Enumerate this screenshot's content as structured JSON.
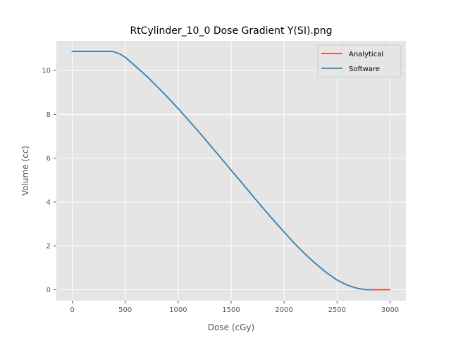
{
  "chart_data": {
    "type": "line",
    "title": "RtCylinder_10_0 Dose Gradient Y(SI).png",
    "xlabel": "Dose (cGy)",
    "ylabel": "Volume (cc)",
    "xlim": [
      -150,
      3150
    ],
    "ylim": [
      -0.5,
      11.35
    ],
    "xticks": [
      0,
      500,
      1000,
      1500,
      2000,
      2500,
      3000
    ],
    "yticks": [
      0,
      2,
      4,
      6,
      8,
      10
    ],
    "grid": true,
    "legend": "top-right",
    "series": [
      {
        "name": "Analytical",
        "color": "#e24a33",
        "x": [
          0,
          200,
          380,
          450,
          500,
          600,
          700,
          800,
          900,
          1000,
          1100,
          1200,
          1300,
          1400,
          1500,
          1600,
          1700,
          1800,
          1900,
          2000,
          2100,
          2200,
          2300,
          2400,
          2500,
          2600,
          2700,
          2780,
          2830,
          2900,
          3000
        ],
        "y": [
          10.87,
          10.87,
          10.87,
          10.75,
          10.6,
          10.18,
          9.75,
          9.27,
          8.78,
          8.26,
          7.72,
          7.17,
          6.6,
          6.03,
          5.45,
          4.88,
          4.3,
          3.73,
          3.17,
          2.63,
          2.1,
          1.62,
          1.18,
          0.78,
          0.44,
          0.2,
          0.05,
          0.0,
          0.0,
          0.0,
          0.0
        ]
      },
      {
        "name": "Software",
        "color": "#348abd",
        "x": [
          0,
          200,
          380,
          450,
          500,
          600,
          700,
          800,
          900,
          1000,
          1100,
          1200,
          1300,
          1400,
          1500,
          1600,
          1700,
          1800,
          1900,
          2000,
          2100,
          2200,
          2300,
          2400,
          2500,
          2600,
          2700,
          2780,
          2830
        ],
        "y": [
          10.87,
          10.87,
          10.87,
          10.75,
          10.6,
          10.18,
          9.75,
          9.27,
          8.78,
          8.26,
          7.72,
          7.17,
          6.6,
          6.03,
          5.45,
          4.88,
          4.3,
          3.73,
          3.17,
          2.63,
          2.1,
          1.62,
          1.18,
          0.78,
          0.44,
          0.2,
          0.05,
          0.0,
          0.0
        ]
      }
    ]
  },
  "colors": {
    "plot_background": "#e5e5e5",
    "grid": "#ffffff",
    "tick_text": "#555555"
  }
}
